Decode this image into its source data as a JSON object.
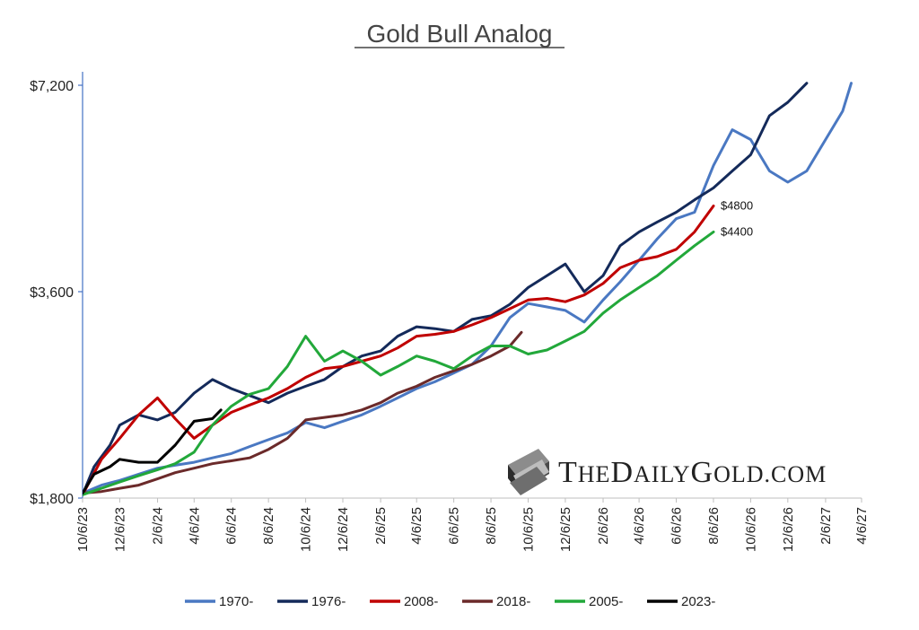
{
  "chart_data": {
    "type": "line",
    "title": "Gold Bull Analog",
    "y_scale": "log",
    "ylim": [
      1800,
      7200
    ],
    "y_ticks": [
      {
        "value": 1800,
        "label": "$1,800"
      },
      {
        "value": 3600,
        "label": "$3,600"
      },
      {
        "value": 7200,
        "label": "$7,200"
      }
    ],
    "x_range": [
      "2023-10-06",
      "2027-04-06"
    ],
    "x_tick_labels": [
      "10/6/23",
      "12/6/23",
      "2/6/24",
      "4/6/24",
      "6/6/24",
      "8/6/24",
      "10/6/24",
      "12/6/24",
      "2/6/25",
      "4/6/25",
      "6/6/25",
      "8/6/25",
      "10/6/25",
      "12/6/25",
      "2/6/26",
      "4/6/26",
      "6/6/26",
      "8/6/26",
      "10/6/26",
      "12/6/26",
      "2/6/27",
      "4/6/27"
    ],
    "x_tick_dates": [
      "2023-10-06",
      "2023-12-06",
      "2024-02-06",
      "2024-04-06",
      "2024-06-06",
      "2024-08-06",
      "2024-10-06",
      "2024-12-06",
      "2025-02-06",
      "2025-04-06",
      "2025-06-06",
      "2025-08-06",
      "2025-10-06",
      "2025-12-06",
      "2026-02-06",
      "2026-04-06",
      "2026-06-06",
      "2026-08-06",
      "2026-10-06",
      "2026-12-06",
      "2027-02-06",
      "2027-04-06"
    ],
    "legend_position": "bottom",
    "grid": false,
    "annotations": [
      {
        "text": "$4800",
        "x": "2026-08-06",
        "y": 4800
      },
      {
        "text": "$4400",
        "x": "2026-08-06",
        "y": 4400
      }
    ],
    "series": [
      {
        "name": "1970-",
        "color": "#4a78c2",
        "points": [
          [
            "2023-10-06",
            1830
          ],
          [
            "2023-11-06",
            1880
          ],
          [
            "2023-12-06",
            1910
          ],
          [
            "2024-01-06",
            1950
          ],
          [
            "2024-02-06",
            1990
          ],
          [
            "2024-03-06",
            2010
          ],
          [
            "2024-04-06",
            2030
          ],
          [
            "2024-05-06",
            2060
          ],
          [
            "2024-06-06",
            2090
          ],
          [
            "2024-07-06",
            2140
          ],
          [
            "2024-08-06",
            2190
          ],
          [
            "2024-09-06",
            2240
          ],
          [
            "2024-10-06",
            2320
          ],
          [
            "2024-11-06",
            2280
          ],
          [
            "2024-12-06",
            2330
          ],
          [
            "2025-01-06",
            2380
          ],
          [
            "2025-02-06",
            2450
          ],
          [
            "2025-03-06",
            2520
          ],
          [
            "2025-04-06",
            2600
          ],
          [
            "2025-05-06",
            2660
          ],
          [
            "2025-06-06",
            2740
          ],
          [
            "2025-07-06",
            2820
          ],
          [
            "2025-08-06",
            3000
          ],
          [
            "2025-09-06",
            3300
          ],
          [
            "2025-10-06",
            3460
          ],
          [
            "2025-11-06",
            3420
          ],
          [
            "2025-12-06",
            3380
          ],
          [
            "2026-01-06",
            3250
          ],
          [
            "2026-02-06",
            3500
          ],
          [
            "2026-03-06",
            3720
          ],
          [
            "2026-04-06",
            4000
          ],
          [
            "2026-05-06",
            4300
          ],
          [
            "2026-06-06",
            4600
          ],
          [
            "2026-07-06",
            4700
          ],
          [
            "2026-08-06",
            5500
          ],
          [
            "2026-09-06",
            6200
          ],
          [
            "2026-10-06",
            6000
          ],
          [
            "2026-11-06",
            5400
          ],
          [
            "2026-12-06",
            5200
          ],
          [
            "2027-01-06",
            5400
          ],
          [
            "2027-02-06",
            6000
          ],
          [
            "2027-03-06",
            6600
          ],
          [
            "2027-03-20",
            7250
          ]
        ]
      },
      {
        "name": "1976-",
        "color": "#142a5a",
        "points": [
          [
            "2023-10-06",
            1820
          ],
          [
            "2023-10-25",
            2000
          ],
          [
            "2023-11-20",
            2150
          ],
          [
            "2023-12-06",
            2300
          ],
          [
            "2024-01-06",
            2380
          ],
          [
            "2024-02-06",
            2340
          ],
          [
            "2024-03-06",
            2400
          ],
          [
            "2024-04-06",
            2560
          ],
          [
            "2024-05-06",
            2680
          ],
          [
            "2024-06-06",
            2600
          ],
          [
            "2024-07-06",
            2540
          ],
          [
            "2024-08-06",
            2480
          ],
          [
            "2024-09-06",
            2560
          ],
          [
            "2024-10-06",
            2620
          ],
          [
            "2024-11-06",
            2680
          ],
          [
            "2024-12-06",
            2800
          ],
          [
            "2025-01-06",
            2900
          ],
          [
            "2025-02-06",
            2950
          ],
          [
            "2025-03-06",
            3100
          ],
          [
            "2025-04-06",
            3200
          ],
          [
            "2025-05-06",
            3180
          ],
          [
            "2025-06-06",
            3150
          ],
          [
            "2025-07-06",
            3280
          ],
          [
            "2025-08-06",
            3320
          ],
          [
            "2025-09-06",
            3450
          ],
          [
            "2025-10-06",
            3650
          ],
          [
            "2025-11-06",
            3800
          ],
          [
            "2025-12-06",
            3950
          ],
          [
            "2026-01-06",
            3600
          ],
          [
            "2026-02-06",
            3800
          ],
          [
            "2026-03-06",
            4200
          ],
          [
            "2026-04-06",
            4400
          ],
          [
            "2026-05-06",
            4550
          ],
          [
            "2026-06-06",
            4700
          ],
          [
            "2026-07-06",
            4900
          ],
          [
            "2026-08-06",
            5100
          ],
          [
            "2026-09-06",
            5400
          ],
          [
            "2026-10-06",
            5700
          ],
          [
            "2026-11-06",
            6500
          ],
          [
            "2026-12-06",
            6800
          ],
          [
            "2027-01-06",
            7250
          ]
        ]
      },
      {
        "name": "2008-",
        "color": "#c00000",
        "points": [
          [
            "2023-10-06",
            1820
          ],
          [
            "2023-11-06",
            2050
          ],
          [
            "2023-12-06",
            2200
          ],
          [
            "2024-01-06",
            2380
          ],
          [
            "2024-02-06",
            2520
          ],
          [
            "2024-03-06",
            2350
          ],
          [
            "2024-04-06",
            2200
          ],
          [
            "2024-05-06",
            2300
          ],
          [
            "2024-06-06",
            2400
          ],
          [
            "2024-07-06",
            2460
          ],
          [
            "2024-08-06",
            2520
          ],
          [
            "2024-09-06",
            2600
          ],
          [
            "2024-10-06",
            2700
          ],
          [
            "2024-11-06",
            2780
          ],
          [
            "2024-12-06",
            2800
          ],
          [
            "2025-01-06",
            2850
          ],
          [
            "2025-02-06",
            2900
          ],
          [
            "2025-03-06",
            2980
          ],
          [
            "2025-04-06",
            3100
          ],
          [
            "2025-05-06",
            3120
          ],
          [
            "2025-06-06",
            3150
          ],
          [
            "2025-07-06",
            3220
          ],
          [
            "2025-08-06",
            3300
          ],
          [
            "2025-09-06",
            3400
          ],
          [
            "2025-10-06",
            3500
          ],
          [
            "2025-11-06",
            3520
          ],
          [
            "2025-12-06",
            3480
          ],
          [
            "2026-01-06",
            3560
          ],
          [
            "2026-02-06",
            3700
          ],
          [
            "2026-03-06",
            3900
          ],
          [
            "2026-04-06",
            4000
          ],
          [
            "2026-05-06",
            4050
          ],
          [
            "2026-06-06",
            4150
          ],
          [
            "2026-07-06",
            4400
          ],
          [
            "2026-08-06",
            4800
          ]
        ]
      },
      {
        "name": "2018-",
        "color": "#6b2a2a",
        "points": [
          [
            "2023-10-06",
            1830
          ],
          [
            "2023-11-06",
            1840
          ],
          [
            "2023-12-06",
            1860
          ],
          [
            "2024-01-06",
            1880
          ],
          [
            "2024-02-06",
            1920
          ],
          [
            "2024-03-06",
            1960
          ],
          [
            "2024-04-06",
            1990
          ],
          [
            "2024-05-06",
            2020
          ],
          [
            "2024-06-06",
            2040
          ],
          [
            "2024-07-06",
            2060
          ],
          [
            "2024-08-06",
            2120
          ],
          [
            "2024-09-06",
            2200
          ],
          [
            "2024-10-06",
            2340
          ],
          [
            "2024-11-06",
            2360
          ],
          [
            "2024-12-06",
            2380
          ],
          [
            "2025-01-06",
            2420
          ],
          [
            "2025-02-06",
            2480
          ],
          [
            "2025-03-06",
            2560
          ],
          [
            "2025-04-06",
            2620
          ],
          [
            "2025-05-06",
            2700
          ],
          [
            "2025-06-06",
            2760
          ],
          [
            "2025-07-06",
            2820
          ],
          [
            "2025-08-06",
            2900
          ],
          [
            "2025-09-06",
            3000
          ],
          [
            "2025-09-25",
            3140
          ]
        ]
      },
      {
        "name": "2005-",
        "color": "#22a83a",
        "points": [
          [
            "2023-10-06",
            1820
          ],
          [
            "2023-11-06",
            1860
          ],
          [
            "2023-12-06",
            1900
          ],
          [
            "2024-01-06",
            1940
          ],
          [
            "2024-02-06",
            1980
          ],
          [
            "2024-03-06",
            2020
          ],
          [
            "2024-04-06",
            2100
          ],
          [
            "2024-05-06",
            2300
          ],
          [
            "2024-06-06",
            2450
          ],
          [
            "2024-07-06",
            2550
          ],
          [
            "2024-08-06",
            2600
          ],
          [
            "2024-09-06",
            2800
          ],
          [
            "2024-10-06",
            3100
          ],
          [
            "2024-11-06",
            2850
          ],
          [
            "2024-12-06",
            2950
          ],
          [
            "2025-01-06",
            2850
          ],
          [
            "2025-02-06",
            2720
          ],
          [
            "2025-03-06",
            2800
          ],
          [
            "2025-04-06",
            2900
          ],
          [
            "2025-05-06",
            2850
          ],
          [
            "2025-06-06",
            2780
          ],
          [
            "2025-07-06",
            2900
          ],
          [
            "2025-08-06",
            3000
          ],
          [
            "2025-09-06",
            3000
          ],
          [
            "2025-10-06",
            2920
          ],
          [
            "2025-11-06",
            2960
          ],
          [
            "2025-12-06",
            3050
          ],
          [
            "2026-01-06",
            3150
          ],
          [
            "2026-02-06",
            3350
          ],
          [
            "2026-03-06",
            3500
          ],
          [
            "2026-04-06",
            3650
          ],
          [
            "2026-05-06",
            3800
          ],
          [
            "2026-06-06",
            4000
          ],
          [
            "2026-07-06",
            4200
          ],
          [
            "2026-08-06",
            4400
          ]
        ]
      },
      {
        "name": "2023-",
        "color": "#000000",
        "points": [
          [
            "2023-10-06",
            1830
          ],
          [
            "2023-10-25",
            1950
          ],
          [
            "2023-11-20",
            2000
          ],
          [
            "2023-12-06",
            2050
          ],
          [
            "2024-01-06",
            2030
          ],
          [
            "2024-02-06",
            2030
          ],
          [
            "2024-03-06",
            2150
          ],
          [
            "2024-04-06",
            2330
          ],
          [
            "2024-05-06",
            2350
          ],
          [
            "2024-05-20",
            2420
          ]
        ]
      }
    ]
  },
  "watermark": {
    "text_caps_1": "T",
    "text_small_1": "HE",
    "text_caps_2": "D",
    "text_small_2": "AILY",
    "text_caps_3": "G",
    "text_small_3": "OLD",
    "text_suffix": ".COM",
    "icon": "gold-bar-icon"
  }
}
